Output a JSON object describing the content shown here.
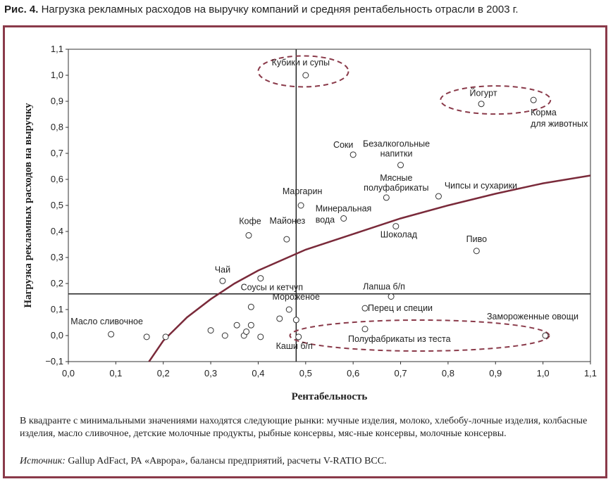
{
  "figure": {
    "label": "Рис. 4.",
    "title": "Нагрузка рекламных расходов на выручку компаний и средняя рентабельность отрасли в 2003 г."
  },
  "note": "В квадранте с минимальными значениями находятся следующие рынки: мучные изделия, молоко, хлебобу-лочные изделия, колбасные изделия, масло сливочное, детские молочные продукты, рыбные консервы, мяс-ные консервы, молочные консервы.",
  "source": {
    "label": "Источник:",
    "text": "Gallup AdFact, РА «Аврора», балансы предприятий, расчеты V-RATIO BCC."
  },
  "colors": {
    "frame": "#8a3a4a",
    "curve": "#7a2a3a",
    "accent_dashed": "#8a3a4a",
    "grid": "#222222"
  },
  "chart_data": {
    "type": "scatter",
    "xlabel": "Рентабельность",
    "ylabel": "Нагрузка рекламных расходов на выручку",
    "xlim": [
      0,
      1.1
    ],
    "ylim": [
      -0.1,
      1.1
    ],
    "x_ticks": [
      "0,0",
      "0,1",
      "0,2",
      "0,3",
      "0,4",
      "0,5",
      "0,6",
      "0,7",
      "0,8",
      "0,9",
      "1,0",
      "1,1"
    ],
    "y_ticks": [
      "−0,1",
      "0,0",
      "0,1",
      "0,2",
      "0,3",
      "0,4",
      "0,5",
      "0,6",
      "0,7",
      "0,8",
      "0,9",
      "1,0",
      "1,1"
    ],
    "reference_lines": {
      "vertical_x": 0.48,
      "horizontal_y": 0.16
    },
    "points": [
      {
        "x": 0.5,
        "y": 1.0,
        "label": "Кубики и супы"
      },
      {
        "x": 0.87,
        "y": 0.89,
        "label": "Йогурт"
      },
      {
        "x": 0.98,
        "y": 0.905,
        "label": "Корма для животных"
      },
      {
        "x": 0.6,
        "y": 0.695,
        "label": "Соки"
      },
      {
        "x": 0.7,
        "y": 0.655,
        "label": "Безалкогольные напитки"
      },
      {
        "x": 0.67,
        "y": 0.53,
        "label": "Мясные полуфабрикаты"
      },
      {
        "x": 0.78,
        "y": 0.535,
        "label": "Чипсы и сухарики"
      },
      {
        "x": 0.49,
        "y": 0.5,
        "label": "Маргарин"
      },
      {
        "x": 0.58,
        "y": 0.45,
        "label": "Минеральная вода"
      },
      {
        "x": 0.69,
        "y": 0.42,
        "label": "Шоколад"
      },
      {
        "x": 0.38,
        "y": 0.385,
        "label": "Кофе"
      },
      {
        "x": 0.46,
        "y": 0.37,
        "label": "Майонез"
      },
      {
        "x": 0.86,
        "y": 0.325,
        "label": "Пиво"
      },
      {
        "x": 0.325,
        "y": 0.21,
        "label": "Чай"
      },
      {
        "x": 0.405,
        "y": 0.22,
        "label": "Соусы и кетчуп"
      },
      {
        "x": 0.68,
        "y": 0.15,
        "label": "Лапша б/п"
      },
      {
        "x": 0.465,
        "y": 0.1,
        "label": "Мороженое"
      },
      {
        "x": 0.625,
        "y": 0.105,
        "label": "Перец и специи"
      },
      {
        "x": 1.005,
        "y": 0.0,
        "label": "Замороженные овощи"
      },
      {
        "x": 0.625,
        "y": 0.025,
        "label": "Полуфабрикаты из теста"
      },
      {
        "x": 0.485,
        "y": -0.005,
        "label": "Каши б/п"
      },
      {
        "x": 0.09,
        "y": 0.005,
        "label": "Масло сливочное"
      },
      {
        "x": 0.165,
        "y": -0.005,
        "label": ""
      },
      {
        "x": 0.205,
        "y": -0.005,
        "label": ""
      },
      {
        "x": 0.3,
        "y": 0.02,
        "label": ""
      },
      {
        "x": 0.33,
        "y": 0.0,
        "label": ""
      },
      {
        "x": 0.355,
        "y": 0.04,
        "label": ""
      },
      {
        "x": 0.37,
        "y": 0.0,
        "label": ""
      },
      {
        "x": 0.375,
        "y": 0.015,
        "label": ""
      },
      {
        "x": 0.385,
        "y": 0.04,
        "label": ""
      },
      {
        "x": 0.385,
        "y": 0.11,
        "label": ""
      },
      {
        "x": 0.405,
        "y": -0.005,
        "label": ""
      },
      {
        "x": 0.445,
        "y": 0.065,
        "label": ""
      },
      {
        "x": 0.48,
        "y": 0.06,
        "label": ""
      }
    ],
    "trend": [
      {
        "x": 0.17,
        "y": -0.1
      },
      {
        "x": 0.2,
        "y": -0.02
      },
      {
        "x": 0.25,
        "y": 0.07
      },
      {
        "x": 0.3,
        "y": 0.14
      },
      {
        "x": 0.35,
        "y": 0.2
      },
      {
        "x": 0.4,
        "y": 0.25
      },
      {
        "x": 0.5,
        "y": 0.33
      },
      {
        "x": 0.6,
        "y": 0.39
      },
      {
        "x": 0.7,
        "y": 0.45
      },
      {
        "x": 0.8,
        "y": 0.5
      },
      {
        "x": 0.9,
        "y": 0.545
      },
      {
        "x": 1.0,
        "y": 0.585
      },
      {
        "x": 1.1,
        "y": 0.615
      }
    ]
  }
}
